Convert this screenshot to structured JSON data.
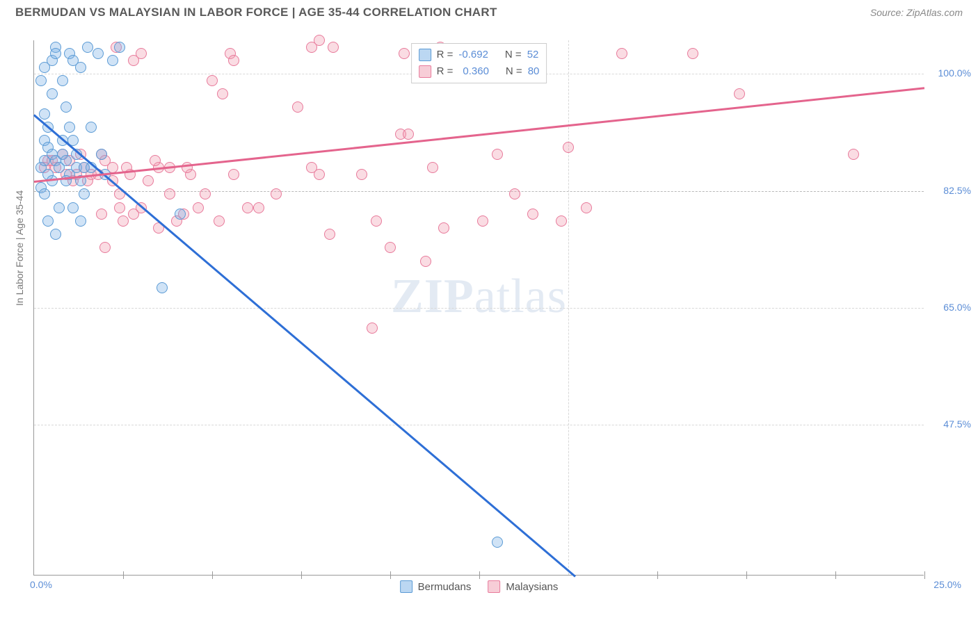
{
  "header": {
    "title": "BERMUDAN VS MALAYSIAN IN LABOR FORCE | AGE 35-44 CORRELATION CHART",
    "source_prefix": "Source: ",
    "source": "ZipAtlas.com"
  },
  "chart": {
    "type": "scatter",
    "ylabel": "In Labor Force | Age 35-44",
    "xlim": [
      0,
      25
    ],
    "ylim": [
      25,
      105
    ],
    "xtick_label_left": "0.0%",
    "xtick_label_right": "25.0%",
    "xtick_positions": [
      0,
      2.5,
      5,
      7.5,
      10,
      12.5,
      15,
      17.5,
      20,
      22.5,
      25
    ],
    "ytick_labels": [
      "100.0%",
      "82.5%",
      "65.0%",
      "47.5%"
    ],
    "ytick_values": [
      100,
      82.5,
      65,
      47.5
    ],
    "grid_color": "#d8d8d8",
    "background_color": "#ffffff",
    "axis_color": "#999999",
    "marker_radius": 8,
    "series": {
      "bermudans": {
        "label": "Bermudans",
        "color_fill": "rgba(120,175,230,0.35)",
        "color_stroke": "#5b9bd5",
        "trend_color": "#2e6fd6",
        "R": "-0.692",
        "N": "52",
        "points": [
          [
            0.2,
            86
          ],
          [
            0.3,
            90
          ],
          [
            0.4,
            92
          ],
          [
            0.3,
            94
          ],
          [
            0.5,
            102
          ],
          [
            0.6,
            104
          ],
          [
            0.8,
            88
          ],
          [
            1.0,
            103
          ],
          [
            1.1,
            90
          ],
          [
            1.2,
            86
          ],
          [
            1.3,
            84
          ],
          [
            0.7,
            80
          ],
          [
            0.4,
            78
          ],
          [
            0.6,
            76
          ],
          [
            0.2,
            99
          ],
          [
            0.5,
            97
          ],
          [
            0.9,
            95
          ],
          [
            1.5,
            104
          ],
          [
            1.8,
            103
          ],
          [
            1.6,
            92
          ],
          [
            1.9,
            88
          ],
          [
            2.0,
            85
          ],
          [
            2.2,
            102
          ],
          [
            2.4,
            104
          ],
          [
            0.3,
            87
          ],
          [
            0.4,
            89
          ],
          [
            0.5,
            88
          ],
          [
            0.6,
            87
          ],
          [
            0.8,
            90
          ],
          [
            0.9,
            87
          ],
          [
            1.0,
            85
          ],
          [
            1.1,
            80
          ],
          [
            1.3,
            78
          ],
          [
            1.4,
            82
          ],
          [
            0.2,
            83
          ],
          [
            0.3,
            82
          ],
          [
            4.1,
            79
          ],
          [
            3.6,
            68
          ],
          [
            13.0,
            30
          ],
          [
            0.7,
            86
          ],
          [
            0.9,
            84
          ],
          [
            1.0,
            92
          ],
          [
            1.2,
            88
          ],
          [
            1.4,
            86
          ],
          [
            1.6,
            86
          ],
          [
            0.4,
            85
          ],
          [
            0.5,
            84
          ],
          [
            0.6,
            103
          ],
          [
            1.1,
            102
          ],
          [
            1.3,
            101
          ],
          [
            0.3,
            101
          ],
          [
            0.8,
            99
          ]
        ],
        "trend": {
          "x1": 0,
          "y1": 94,
          "x2": 15.2,
          "y2": 25
        }
      },
      "malaysians": {
        "label": "Malaysians",
        "color_fill": "rgba(240,155,175,0.35)",
        "color_stroke": "#e87a9b",
        "trend_color": "#e4648d",
        "R": "0.360",
        "N": "80",
        "points": [
          [
            0.4,
            87
          ],
          [
            0.6,
            86
          ],
          [
            0.9,
            85
          ],
          [
            1.1,
            84
          ],
          [
            1.3,
            88
          ],
          [
            1.6,
            85
          ],
          [
            1.9,
            88
          ],
          [
            2.0,
            87
          ],
          [
            2.2,
            84
          ],
          [
            2.4,
            82
          ],
          [
            2.7,
            85
          ],
          [
            3.0,
            80
          ],
          [
            3.2,
            84
          ],
          [
            3.5,
            86
          ],
          [
            3.8,
            82
          ],
          [
            4.0,
            78
          ],
          [
            4.4,
            85
          ],
          [
            4.8,
            82
          ],
          [
            5.0,
            99
          ],
          [
            5.2,
            78
          ],
          [
            5.6,
            85
          ],
          [
            6.0,
            80
          ],
          [
            5.3,
            97
          ],
          [
            5.5,
            103
          ],
          [
            7.8,
            104
          ],
          [
            7.8,
            86
          ],
          [
            7.4,
            95
          ],
          [
            8.0,
            105
          ],
          [
            8.0,
            85
          ],
          [
            8.3,
            76
          ],
          [
            8.4,
            104
          ],
          [
            9.2,
            85
          ],
          [
            9.5,
            62
          ],
          [
            9.6,
            78
          ],
          [
            10.0,
            74
          ],
          [
            10.3,
            91
          ],
          [
            10.4,
            103
          ],
          [
            10.5,
            91
          ],
          [
            11.0,
            72
          ],
          [
            11.2,
            86
          ],
          [
            11.4,
            104
          ],
          [
            11.5,
            77
          ],
          [
            12.6,
            78
          ],
          [
            13.0,
            88
          ],
          [
            13.5,
            82
          ],
          [
            14.0,
            79
          ],
          [
            14.8,
            78
          ],
          [
            15.0,
            89
          ],
          [
            15.5,
            80
          ],
          [
            16.5,
            103
          ],
          [
            18.5,
            103
          ],
          [
            19.8,
            97
          ],
          [
            23.0,
            88
          ],
          [
            2.8,
            79
          ],
          [
            2.5,
            78
          ],
          [
            3.5,
            77
          ],
          [
            2.0,
            74
          ],
          [
            2.3,
            104
          ],
          [
            2.8,
            102
          ],
          [
            3.0,
            103
          ],
          [
            5.6,
            102
          ],
          [
            0.8,
            88
          ],
          [
            1.0,
            87
          ],
          [
            1.4,
            86
          ],
          [
            1.8,
            85
          ],
          [
            2.2,
            86
          ],
          [
            0.3,
            86
          ],
          [
            0.5,
            87
          ],
          [
            1.2,
            85
          ],
          [
            1.5,
            84
          ],
          [
            2.6,
            86
          ],
          [
            3.4,
            87
          ],
          [
            3.8,
            86
          ],
          [
            4.2,
            79
          ],
          [
            4.6,
            80
          ],
          [
            4.3,
            86
          ],
          [
            6.3,
            80
          ],
          [
            6.8,
            82
          ],
          [
            1.9,
            79
          ],
          [
            2.4,
            80
          ]
        ],
        "trend": {
          "x1": 0,
          "y1": 84,
          "x2": 25,
          "y2": 98
        }
      }
    },
    "legend_top": {
      "row1": {
        "swatch": "blue",
        "r_label": "R =",
        "r_val": "-0.692",
        "n_label": "N =",
        "n_val": "52"
      },
      "row2": {
        "swatch": "pink",
        "r_label": "R =",
        "r_val": "0.360",
        "n_label": "N =",
        "n_val": "80"
      }
    },
    "legend_bottom": {
      "item1": {
        "swatch": "blue",
        "label": "Bermudans"
      },
      "item2": {
        "swatch": "pink",
        "label": "Malaysians"
      }
    },
    "watermark": {
      "zip": "ZIP",
      "atlas": "atlas"
    }
  }
}
